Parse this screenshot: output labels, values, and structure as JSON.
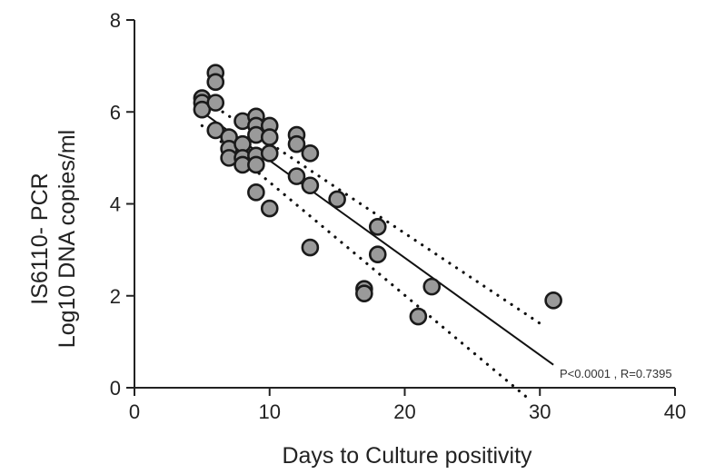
{
  "chart_data": {
    "type": "scatter",
    "title": "",
    "xlabel": "Days to Culture positivity",
    "ylabel_lines": [
      "IS6110- PCR",
      "Log10 DNA copies/ml"
    ],
    "xlim": [
      0,
      40
    ],
    "ylim": [
      0,
      8
    ],
    "xticks": [
      0,
      10,
      20,
      30,
      40
    ],
    "yticks": [
      0,
      2,
      4,
      6,
      8
    ],
    "grid": false,
    "legend": "none",
    "annotation": "P<0.0001 , R=0.7395",
    "colors": {
      "point_fill": "#9a9a9a",
      "point_stroke": "#1a1a1a",
      "line": "#111111"
    },
    "points": [
      {
        "x": 5,
        "y": 6.3
      },
      {
        "x": 5,
        "y": 6.2
      },
      {
        "x": 5,
        "y": 6.05
      },
      {
        "x": 6,
        "y": 6.85
      },
      {
        "x": 6,
        "y": 6.65
      },
      {
        "x": 6,
        "y": 6.2
      },
      {
        "x": 6,
        "y": 5.6
      },
      {
        "x": 7,
        "y": 5.45
      },
      {
        "x": 7,
        "y": 5.2
      },
      {
        "x": 7,
        "y": 5.0
      },
      {
        "x": 8,
        "y": 5.8
      },
      {
        "x": 8,
        "y": 5.3
      },
      {
        "x": 8,
        "y": 5.0
      },
      {
        "x": 8,
        "y": 4.85
      },
      {
        "x": 9,
        "y": 5.9
      },
      {
        "x": 9,
        "y": 5.7
      },
      {
        "x": 9,
        "y": 5.5
      },
      {
        "x": 9,
        "y": 5.05
      },
      {
        "x": 9,
        "y": 4.85
      },
      {
        "x": 9,
        "y": 4.25
      },
      {
        "x": 10,
        "y": 5.7
      },
      {
        "x": 10,
        "y": 5.45
      },
      {
        "x": 10,
        "y": 5.1
      },
      {
        "x": 10,
        "y": 3.9
      },
      {
        "x": 12,
        "y": 5.5
      },
      {
        "x": 12,
        "y": 5.3
      },
      {
        "x": 12,
        "y": 4.6
      },
      {
        "x": 13,
        "y": 5.1
      },
      {
        "x": 13,
        "y": 4.4
      },
      {
        "x": 13,
        "y": 3.05
      },
      {
        "x": 15,
        "y": 4.1
      },
      {
        "x": 17,
        "y": 2.15
      },
      {
        "x": 17,
        "y": 2.05
      },
      {
        "x": 18,
        "y": 3.5
      },
      {
        "x": 18,
        "y": 2.9
      },
      {
        "x": 21,
        "y": 1.55
      },
      {
        "x": 22,
        "y": 2.2
      },
      {
        "x": 31,
        "y": 1.9
      }
    ],
    "regression_line": {
      "x": [
        5,
        31
      ],
      "y": [
        6.0,
        0.5
      ]
    },
    "confidence_upper": {
      "x": [
        5,
        30
      ],
      "y": [
        6.3,
        1.4
      ]
    },
    "confidence_lower": {
      "x": [
        5,
        29
      ],
      "y": [
        5.7,
        -0.2
      ]
    }
  }
}
